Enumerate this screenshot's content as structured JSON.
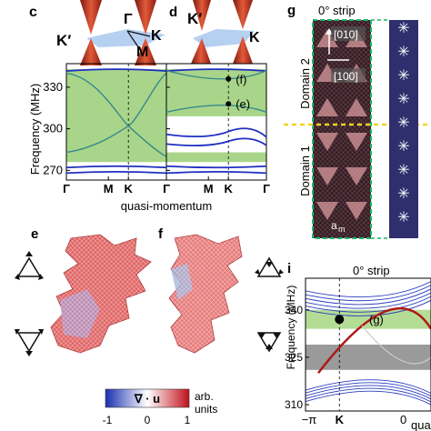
{
  "panels": {
    "c": {
      "letter": "c",
      "K_prime": "K′",
      "Gamma": "Γ",
      "M": "M",
      "K": "K"
    },
    "d": {
      "letter": "d",
      "K_prime": "K′",
      "K": "K"
    },
    "g": {
      "letter": "g",
      "strip_title": "0° strip",
      "dir_010": "[010]",
      "dir_100": "[100]",
      "domain2": "Domain 2",
      "domain1": "Domain 1",
      "a_m": "a",
      "a_m_sub": "m"
    },
    "e": {
      "letter": "e"
    },
    "f": {
      "letter": "f"
    },
    "i": {
      "letter": "i",
      "strip_title": "0° strip",
      "marker_label": "(g)"
    },
    "colorbar": {
      "symbol": "∇ · u",
      "unit_line1": "arb.",
      "unit_line2": "units",
      "ticks": [
        "-1",
        "0",
        "1"
      ]
    }
  },
  "chart_data": [
    {
      "id": "c",
      "type": "line",
      "ylabel": "Frequency (MHz)",
      "xlabel": "quasi-momentum",
      "yticks": [
        270,
        300,
        330
      ],
      "ylim": [
        263,
        347
      ],
      "xticks": [
        "Γ",
        "M",
        "K",
        "Γ"
      ],
      "gap_shading": [
        276,
        343
      ],
      "colors": {
        "gap": "#a8d58a",
        "band": "#1f2fbf",
        "edge": "#3a8a8a"
      }
    },
    {
      "id": "d",
      "type": "line",
      "yticks": [
        270,
        300,
        330
      ],
      "ylim": [
        263,
        347
      ],
      "xticks": [
        "Γ",
        "M",
        "K",
        "Γ"
      ],
      "gap_shading": [
        [
          309,
          343
        ],
        [
          276,
          283
        ]
      ],
      "annotations": [
        {
          "label": "(f)",
          "y": 336
        },
        {
          "label": "(e)",
          "y": 318
        }
      ],
      "colors": {
        "gap": "#a8d58a",
        "band": "#1f2fbf",
        "edge": "#3a8a8a"
      }
    },
    {
      "id": "i",
      "type": "line",
      "ylabel": "Frequency (MHz)",
      "xlabel": "quas",
      "yticks": [
        310,
        325,
        340
      ],
      "xticks": [
        "−π",
        "K",
        "0"
      ],
      "ylim": [
        308,
        350
      ],
      "green_band": [
        334,
        340
      ],
      "gray_band": [
        321,
        329
      ],
      "marker": {
        "x": "K",
        "y": 337
      }
    }
  ]
}
